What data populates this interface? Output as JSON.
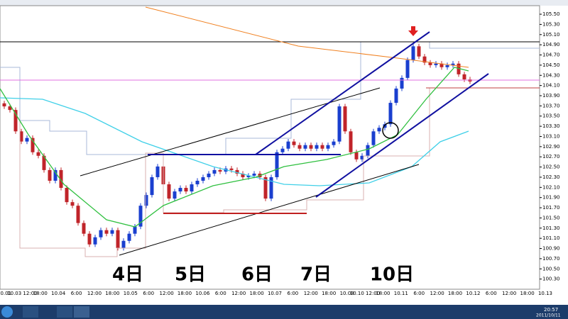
{
  "chart_data": {
    "type": "candlestick",
    "up_color": "#1a3fcf",
    "down_color": "#c0242a",
    "ylim": [
      100.1,
      105.64
    ],
    "yticks": [
      {
        "value": 100.3,
        "label": "100.30"
      },
      {
        "value": 100.5,
        "label": "100.50"
      },
      {
        "value": 100.7,
        "label": "100.70"
      },
      {
        "value": 100.9,
        "label": "100.90"
      },
      {
        "value": 101.1,
        "label": "101.10"
      },
      {
        "value": 101.3,
        "label": "101.30"
      },
      {
        "value": 101.5,
        "label": "101.50"
      },
      {
        "value": 101.7,
        "label": "101.70"
      },
      {
        "value": 101.9,
        "label": "101.90"
      },
      {
        "value": 102.1,
        "label": "102.10"
      },
      {
        "value": 102.3,
        "label": "102.30"
      },
      {
        "value": 102.5,
        "label": "102.50"
      },
      {
        "value": 102.7,
        "label": "102.70"
      },
      {
        "value": 102.9,
        "label": "102.90"
      },
      {
        "value": 103.1,
        "label": "103.10"
      },
      {
        "value": 103.3,
        "label": "103.30"
      },
      {
        "value": 103.5,
        "label": "103.50"
      },
      {
        "value": 103.7,
        "label": "103.70"
      },
      {
        "value": 103.9,
        "label": "103.90"
      },
      {
        "value": 104.1,
        "label": "104.10"
      },
      {
        "value": 104.3,
        "label": "104.30"
      },
      {
        "value": 104.5,
        "label": "104.50"
      },
      {
        "value": 104.7,
        "label": "104.70"
      },
      {
        "value": 104.9,
        "label": "104.90"
      },
      {
        "value": 105.1,
        "label": "105.10"
      },
      {
        "value": 105.3,
        "label": "105.30"
      },
      {
        "value": 105.5,
        "label": "105.50"
      }
    ],
    "xlabels": [
      "10.01",
      "10.03 12:00",
      "18:00",
      "10.04",
      "6:00",
      "12:00",
      "18:00",
      "10.05",
      "6:00",
      "12:00",
      "18:00",
      "10.06",
      "6:00",
      "12:00",
      "18:00",
      "10.07",
      "6:00",
      "12:00",
      "18:00",
      "10.08",
      "10.10 12:00",
      "18:00",
      "10.11",
      "6:00",
      "12:00",
      "18:00",
      "10.12",
      "6:00",
      "12:00",
      "18:00",
      "10.13"
    ],
    "open": [
      103.75,
      103.69,
      103.62,
      103.2,
      103.0,
      103.07,
      102.79,
      102.72,
      102.44,
      102.23,
      102.44,
      102.09,
      101.81,
      101.74,
      101.4,
      101.19,
      100.98,
      101.12,
      101.26,
      101.19,
      101.26,
      100.91,
      101.05,
      101.19,
      101.33,
      101.74,
      101.95,
      102.3,
      102.51,
      102.16,
      101.88,
      102.02,
      102.09,
      102.02,
      102.16,
      102.23,
      102.3,
      102.37,
      102.44,
      102.41,
      102.47,
      102.44,
      102.37,
      102.3,
      102.33,
      102.37,
      102.3,
      101.88,
      102.3,
      102.79,
      102.86,
      103.0,
      102.93,
      102.86,
      102.93,
      102.86,
      102.93,
      102.86,
      102.93,
      103.0,
      103.69,
      103.2,
      102.79,
      102.65,
      102.72,
      102.93,
      103.2,
      103.27,
      103.34,
      103.76,
      104.04,
      104.25,
      104.6,
      104.87,
      104.67,
      104.55,
      104.5,
      104.53,
      104.46,
      104.5,
      104.53,
      104.32,
      104.22
    ],
    "high": [
      103.8,
      103.74,
      103.67,
      103.25,
      103.12,
      103.12,
      102.84,
      102.77,
      102.49,
      102.49,
      102.49,
      102.14,
      101.86,
      101.79,
      101.45,
      101.24,
      101.17,
      101.31,
      101.31,
      101.31,
      101.31,
      101.1,
      101.24,
      101.38,
      101.79,
      102.0,
      102.35,
      102.56,
      102.56,
      102.21,
      102.07,
      102.14,
      102.14,
      102.21,
      102.28,
      102.35,
      102.42,
      102.49,
      102.49,
      102.52,
      102.52,
      102.49,
      102.42,
      102.38,
      102.42,
      102.42,
      102.35,
      102.35,
      102.84,
      102.91,
      103.05,
      103.05,
      102.98,
      102.98,
      102.98,
      102.98,
      102.98,
      102.98,
      103.05,
      103.74,
      103.74,
      103.25,
      102.84,
      102.77,
      102.98,
      103.25,
      103.32,
      103.39,
      103.81,
      104.09,
      104.3,
      104.65,
      104.92,
      104.92,
      104.72,
      104.6,
      104.58,
      104.58,
      104.55,
      104.58,
      104.58,
      104.37,
      104.27
    ],
    "low": [
      103.64,
      103.57,
      103.15,
      102.95,
      102.95,
      102.74,
      102.67,
      102.39,
      102.18,
      102.18,
      102.04,
      101.76,
      101.69,
      101.35,
      101.14,
      100.93,
      100.93,
      101.07,
      101.14,
      101.14,
      100.86,
      100.86,
      101.0,
      101.14,
      101.28,
      101.69,
      101.9,
      102.25,
      102.11,
      101.83,
      101.83,
      101.97,
      101.97,
      101.97,
      102.11,
      102.18,
      102.25,
      102.32,
      102.36,
      102.36,
      102.39,
      102.32,
      102.25,
      102.25,
      102.28,
      102.25,
      101.83,
      101.83,
      102.25,
      102.74,
      102.81,
      102.88,
      102.81,
      102.81,
      102.81,
      102.81,
      102.81,
      102.81,
      102.88,
      102.95,
      103.15,
      102.74,
      102.6,
      102.6,
      102.67,
      102.88,
      103.15,
      103.22,
      103.29,
      103.71,
      103.99,
      104.2,
      104.55,
      104.62,
      104.5,
      104.45,
      104.45,
      104.41,
      104.41,
      104.45,
      104.27,
      104.17,
      104.13
    ],
    "close": [
      103.69,
      103.62,
      103.2,
      103.0,
      103.07,
      102.79,
      102.72,
      102.44,
      102.23,
      102.44,
      102.09,
      101.81,
      101.74,
      101.4,
      101.19,
      100.98,
      101.12,
      101.26,
      101.19,
      101.26,
      100.91,
      101.05,
      101.19,
      101.33,
      101.74,
      101.95,
      102.3,
      102.51,
      102.16,
      101.88,
      102.02,
      102.09,
      102.02,
      102.16,
      102.23,
      102.3,
      102.37,
      102.44,
      102.41,
      102.47,
      102.44,
      102.37,
      102.3,
      102.33,
      102.37,
      102.3,
      101.88,
      102.3,
      102.79,
      102.86,
      103.0,
      102.93,
      102.86,
      102.93,
      102.86,
      102.93,
      102.86,
      102.93,
      103.0,
      103.69,
      103.2,
      102.79,
      102.65,
      102.72,
      102.93,
      103.2,
      103.27,
      103.34,
      103.76,
      104.04,
      104.25,
      104.6,
      104.87,
      104.67,
      104.55,
      104.5,
      104.53,
      104.46,
      104.5,
      104.53,
      104.32,
      104.22,
      104.18
    ],
    "annotations": [
      "4日",
      "5日",
      "6日",
      "7日",
      "10日"
    ],
    "taskbar": {
      "time": "20:57",
      "date": "2011/10/11"
    }
  }
}
